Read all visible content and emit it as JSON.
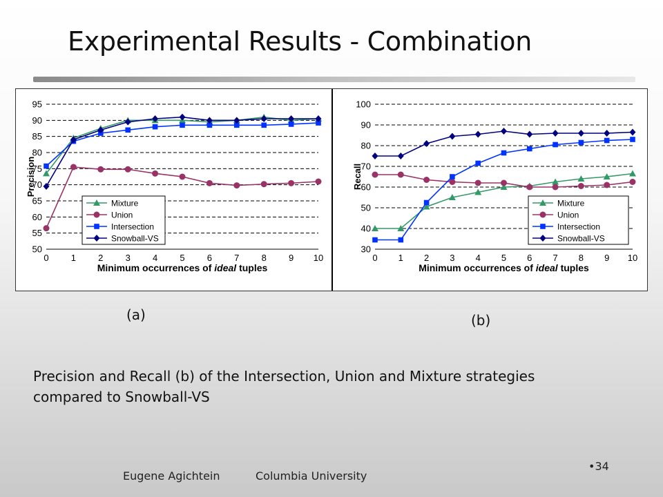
{
  "slide": {
    "title": "Experimental Results - Combination",
    "label_a": "(a)",
    "label_b": "(b)",
    "caption": "Precision and Recall (b) of the Intersection, Union and Mixture strategies compared to Snowball-VS",
    "footer_author": "Eugene Agichtein",
    "footer_org": "Columbia University",
    "page_number": "•34"
  },
  "chart_data": [
    {
      "type": "line",
      "xlabel_parts": [
        "Minimum occurrences of ",
        "ideal",
        " tuples"
      ],
      "ylabel": "Precision",
      "x": [
        0,
        1,
        2,
        3,
        4,
        5,
        6,
        7,
        8,
        9,
        10
      ],
      "ylim": [
        50,
        95
      ],
      "yticks": [
        50,
        55,
        60,
        65,
        70,
        75,
        80,
        85,
        90,
        95
      ],
      "grid": "horizontal-dashed",
      "legend_position": "bottom-center",
      "series": [
        {
          "name": "Mixture",
          "color": "#339966",
          "marker": "triangle",
          "values": [
            73.5,
            84.5,
            87.5,
            90,
            90,
            90,
            89.5,
            90,
            91,
            90,
            90.5
          ]
        },
        {
          "name": "Union",
          "color": "#993366",
          "marker": "circle",
          "values": [
            56.5,
            75.5,
            74.8,
            74.8,
            73.5,
            72.5,
            70.5,
            69.8,
            70.2,
            70.5,
            71
          ]
        },
        {
          "name": "Intersection",
          "color": "#0033ff",
          "marker": "square",
          "values": [
            75.8,
            83.5,
            86,
            87,
            88,
            88.5,
            88.5,
            88.5,
            88.5,
            88.8,
            89.2
          ]
        },
        {
          "name": "Snowball-VS",
          "color": "#000080",
          "marker": "diamond",
          "values": [
            69.5,
            84,
            87,
            89.5,
            90.5,
            91,
            90,
            90,
            90.5,
            90.5,
            90.5
          ]
        }
      ]
    },
    {
      "type": "line",
      "xlabel_parts": [
        "Minimum occurrences of ",
        "ideal",
        " tuples"
      ],
      "ylabel": "Recall",
      "x": [
        0,
        1,
        2,
        3,
        4,
        5,
        6,
        7,
        8,
        9,
        10
      ],
      "ylim": [
        30,
        100
      ],
      "yticks": [
        30,
        40,
        50,
        60,
        70,
        80,
        90,
        100
      ],
      "grid": "horizontal-dashed",
      "legend_position": "bottom-right",
      "series": [
        {
          "name": "Mixture",
          "color": "#339966",
          "marker": "triangle",
          "values": [
            40,
            40,
            50.5,
            55,
            57.5,
            60,
            60.5,
            62.5,
            64,
            65,
            66.5
          ]
        },
        {
          "name": "Union",
          "color": "#993366",
          "marker": "circle",
          "values": [
            66,
            66,
            63.5,
            62.5,
            62,
            62,
            60,
            60,
            60.5,
            61,
            62.5
          ]
        },
        {
          "name": "Intersection",
          "color": "#0033ff",
          "marker": "square",
          "values": [
            34.5,
            34.5,
            52.5,
            65,
            71.5,
            76.5,
            78.5,
            80.5,
            81.5,
            82.5,
            83
          ]
        },
        {
          "name": "Snowball-VS",
          "color": "#000080",
          "marker": "diamond",
          "values": [
            75,
            75,
            81,
            84.5,
            85.5,
            87,
            85.5,
            86,
            86,
            86,
            86.5
          ]
        }
      ]
    }
  ]
}
